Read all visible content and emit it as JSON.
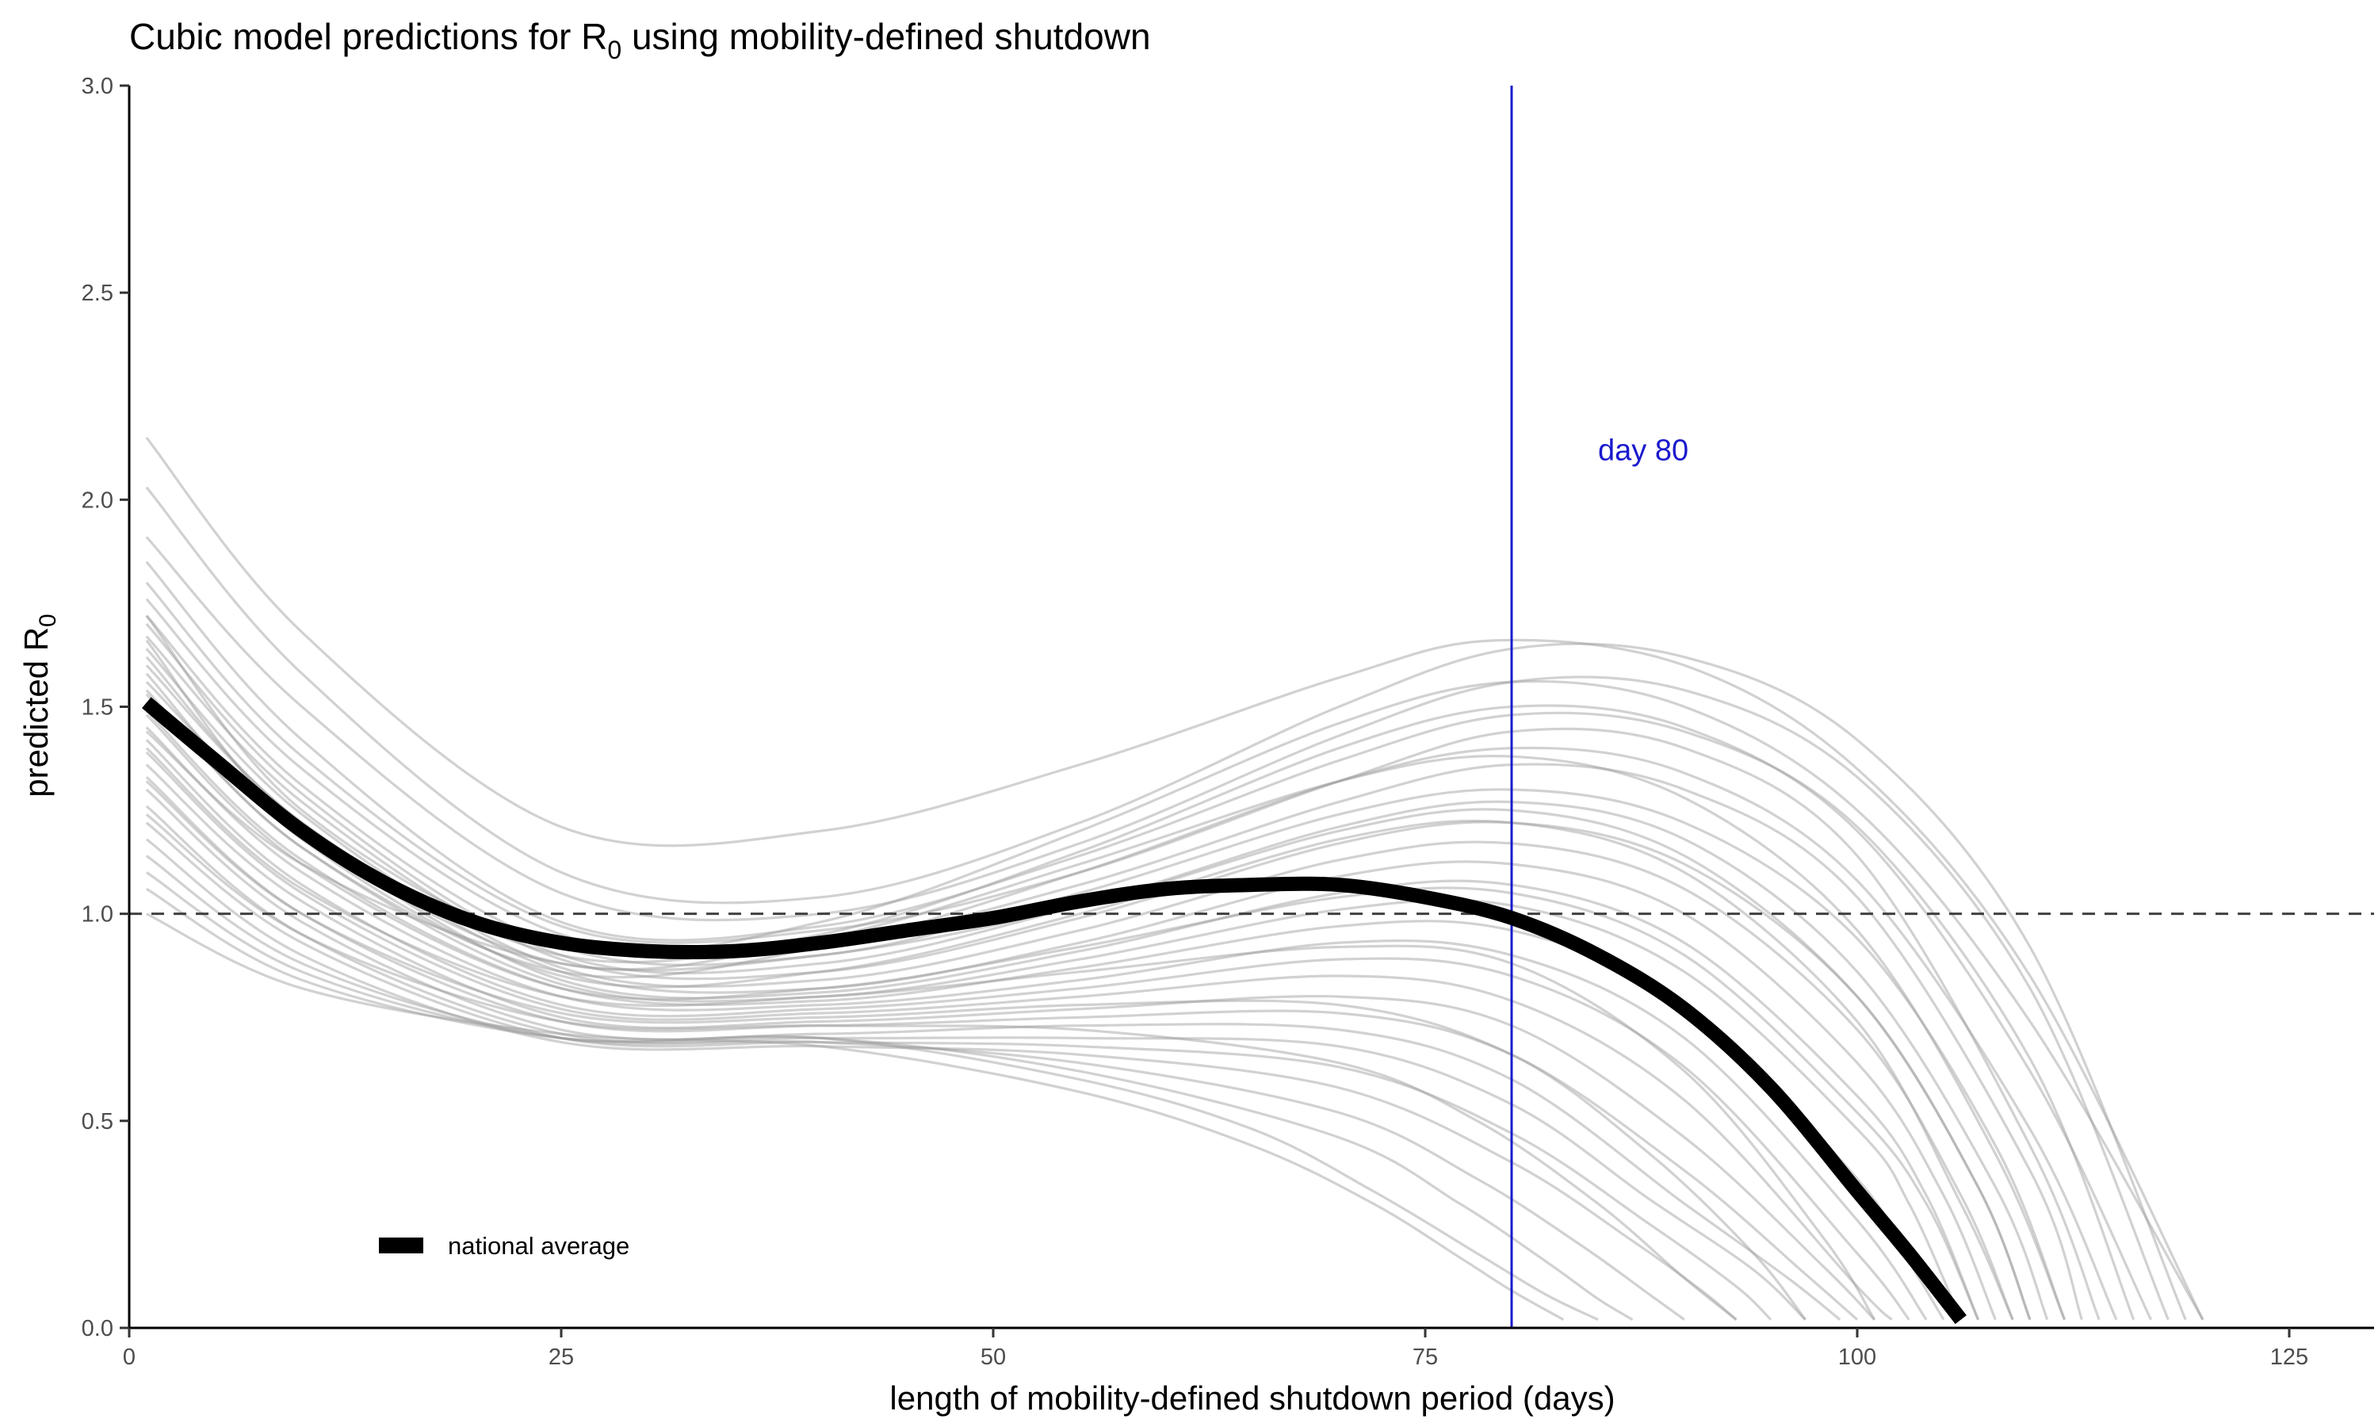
{
  "chart_data": {
    "type": "line",
    "title": "Cubic model predictions for R",
    "title_sub": "0",
    "title_rest": " using mobility-defined shutdown",
    "xlabel": "length of mobility-defined shutdown period (days)",
    "ylabel": "predicted R",
    "ylabel_sub": "0",
    "xlim": [
      0,
      130
    ],
    "ylim": [
      0,
      3.0
    ],
    "x_ticks": [
      0,
      25,
      50,
      75,
      100,
      125
    ],
    "x_tick_labels": [
      "0",
      "25",
      "50",
      "75",
      "100",
      "125"
    ],
    "y_ticks": [
      0,
      0.5,
      1.0,
      1.5,
      2.0,
      2.5,
      3.0
    ],
    "y_tick_labels": [
      "0.0",
      "0.5",
      "1.0",
      "1.5",
      "2.0",
      "2.5",
      "3.0"
    ],
    "grid": false,
    "reference_line": {
      "y": 1.0,
      "style": "dashed",
      "color": "#404040"
    },
    "vertical_line": {
      "x": 80,
      "color": "#1a1acd",
      "label": "day 80"
    },
    "legend": {
      "placement": "bottom-left",
      "label": "national average"
    },
    "colors": {
      "individual": "#9a9a9a",
      "national": "#000000",
      "vertical": "#1a1acd"
    },
    "series": [
      {
        "name": "national average",
        "highlight": true,
        "x": [
          1,
          5,
          10,
          15,
          20,
          25,
          30,
          35,
          40,
          45,
          50,
          55,
          60,
          65,
          70,
          75,
          80,
          85,
          90,
          95,
          100,
          103,
          106
        ],
        "values": [
          1.51,
          1.37,
          1.2,
          1.07,
          0.98,
          0.93,
          0.91,
          0.91,
          0.93,
          0.96,
          0.99,
          1.03,
          1.06,
          1.07,
          1.07,
          1.04,
          0.99,
          0.9,
          0.77,
          0.58,
          0.33,
          0.18,
          0.02
        ]
      },
      {
        "x": [
          1,
          10,
          25,
          40,
          55,
          70,
          79,
          90,
          100,
          110,
          120
        ],
        "values": [
          2.15,
          1.68,
          1.21,
          1.2,
          1.36,
          1.57,
          1.66,
          1.6,
          1.35,
          0.85,
          0.02
        ]
      },
      {
        "x": [
          1,
          10,
          25,
          40,
          55,
          70,
          80,
          90,
          100,
          110,
          119
        ],
        "values": [
          2.03,
          1.58,
          1.1,
          1.04,
          1.22,
          1.5,
          1.64,
          1.62,
          1.42,
          0.92,
          0.02
        ]
      },
      {
        "x": [
          1,
          10,
          25,
          40,
          55,
          70,
          80,
          90,
          100,
          110,
          118
        ],
        "values": [
          1.91,
          1.5,
          1.05,
          1.0,
          1.17,
          1.43,
          1.56,
          1.54,
          1.33,
          0.82,
          0.02
        ]
      },
      {
        "x": [
          1,
          10,
          25,
          40,
          55,
          70,
          80,
          90,
          100,
          110,
          116
        ],
        "values": [
          1.85,
          1.42,
          0.98,
          0.97,
          1.14,
          1.37,
          1.48,
          1.44,
          1.21,
          0.65,
          0.02
        ]
      },
      {
        "x": [
          1,
          10,
          25,
          40,
          55,
          70,
          80,
          90,
          100,
          110,
          114
        ],
        "values": [
          1.8,
          1.38,
          0.97,
          0.96,
          1.1,
          1.32,
          1.44,
          1.4,
          1.14,
          0.44,
          0.02
        ]
      },
      {
        "x": [
          1,
          10,
          25,
          40,
          55,
          70,
          80,
          90,
          100,
          110,
          113
        ],
        "values": [
          1.76,
          1.35,
          0.95,
          0.93,
          1.07,
          1.27,
          1.36,
          1.3,
          1.04,
          0.38,
          0.02
        ]
      },
      {
        "x": [
          1,
          10,
          25,
          40,
          55,
          70,
          80,
          90,
          100,
          108,
          112
        ],
        "values": [
          1.72,
          1.31,
          0.92,
          0.9,
          1.05,
          1.24,
          1.3,
          1.22,
          0.94,
          0.44,
          0.02
        ]
      },
      {
        "x": [
          1,
          10,
          25,
          40,
          55,
          70,
          80,
          90,
          100,
          108,
          111
        ],
        "values": [
          1.7,
          1.29,
          0.9,
          0.88,
          1.02,
          1.21,
          1.27,
          1.18,
          0.86,
          0.34,
          0.02
        ]
      },
      {
        "x": [
          1,
          10,
          25,
          40,
          55,
          70,
          80,
          90,
          100,
          107,
          110
        ],
        "values": [
          1.67,
          1.27,
          0.89,
          0.86,
          0.99,
          1.17,
          1.22,
          1.12,
          0.8,
          0.34,
          0.02
        ]
      },
      {
        "x": [
          1,
          10,
          25,
          40,
          55,
          70,
          80,
          90,
          100,
          106,
          109
        ],
        "values": [
          1.64,
          1.24,
          0.87,
          0.84,
          0.96,
          1.13,
          1.17,
          1.06,
          0.72,
          0.32,
          0.02
        ]
      },
      {
        "x": [
          1,
          10,
          25,
          40,
          55,
          70,
          80,
          90,
          100,
          105,
          108
        ],
        "values": [
          1.6,
          1.22,
          0.86,
          0.82,
          0.93,
          1.09,
          1.12,
          1.0,
          0.64,
          0.32,
          0.02
        ]
      },
      {
        "x": [
          1,
          10,
          25,
          40,
          55,
          70,
          80,
          90,
          100,
          104,
          107
        ],
        "values": [
          1.56,
          1.2,
          0.84,
          0.81,
          0.91,
          1.05,
          1.07,
          0.93,
          0.56,
          0.32,
          0.02
        ]
      },
      {
        "x": [
          1,
          10,
          25,
          40,
          55,
          70,
          80,
          90,
          100,
          103,
          106
        ],
        "values": [
          1.53,
          1.16,
          0.83,
          0.8,
          0.89,
          1.01,
          1.02,
          0.86,
          0.48,
          0.3,
          0.02
        ]
      },
      {
        "x": [
          1,
          10,
          25,
          40,
          55,
          70,
          80,
          90,
          100,
          103,
          105
        ],
        "values": [
          1.49,
          1.13,
          0.82,
          0.79,
          0.87,
          0.97,
          0.96,
          0.78,
          0.36,
          0.16,
          0.02
        ]
      },
      {
        "x": [
          1,
          10,
          25,
          40,
          55,
          70,
          80,
          90,
          100,
          104
        ],
        "values": [
          1.45,
          1.1,
          0.8,
          0.78,
          0.84,
          0.93,
          0.9,
          0.7,
          0.26,
          0.02
        ]
      },
      {
        "x": [
          1,
          10,
          25,
          40,
          55,
          70,
          80,
          90,
          100,
          103
        ],
        "values": [
          1.42,
          1.07,
          0.78,
          0.77,
          0.82,
          0.89,
          0.85,
          0.63,
          0.18,
          0.02
        ]
      },
      {
        "x": [
          1,
          10,
          25,
          40,
          55,
          70,
          80,
          90,
          100,
          102
        ],
        "values": [
          1.39,
          1.05,
          0.77,
          0.76,
          0.8,
          0.85,
          0.79,
          0.55,
          0.1,
          0.02
        ]
      },
      {
        "x": [
          1,
          10,
          25,
          40,
          55,
          70,
          80,
          90,
          98,
          101
        ],
        "values": [
          1.36,
          1.03,
          0.75,
          0.74,
          0.77,
          0.8,
          0.73,
          0.46,
          0.15,
          0.02
        ]
      },
      {
        "x": [
          1,
          10,
          25,
          40,
          55,
          70,
          80,
          90,
          97,
          100
        ],
        "values": [
          1.33,
          1.0,
          0.74,
          0.73,
          0.75,
          0.76,
          0.66,
          0.38,
          0.13,
          0.02
        ]
      },
      {
        "x": [
          1,
          10,
          25,
          40,
          55,
          70,
          80,
          90,
          96,
          99
        ],
        "values": [
          1.3,
          0.98,
          0.72,
          0.71,
          0.73,
          0.72,
          0.6,
          0.3,
          0.12,
          0.02
        ]
      },
      {
        "x": [
          1,
          10,
          25,
          40,
          55,
          70,
          80,
          88,
          94,
          97
        ],
        "values": [
          1.26,
          0.95,
          0.71,
          0.7,
          0.7,
          0.68,
          0.54,
          0.31,
          0.14,
          0.02
        ]
      },
      {
        "x": [
          1,
          10,
          25,
          40,
          55,
          70,
          80,
          88,
          93,
          95
        ],
        "values": [
          1.22,
          0.93,
          0.7,
          0.69,
          0.68,
          0.63,
          0.47,
          0.25,
          0.1,
          0.02
        ]
      },
      {
        "x": [
          1,
          10,
          25,
          40,
          55,
          70,
          80,
          87,
          91,
          93
        ],
        "values": [
          1.18,
          0.9,
          0.69,
          0.68,
          0.66,
          0.58,
          0.4,
          0.21,
          0.09,
          0.02
        ]
      },
      {
        "x": [
          1,
          10,
          25,
          40,
          55,
          70,
          78,
          84,
          88,
          90
        ],
        "values": [
          1.14,
          0.88,
          0.7,
          0.69,
          0.64,
          0.52,
          0.36,
          0.2,
          0.08,
          0.02
        ]
      },
      {
        "x": [
          1,
          10,
          25,
          40,
          55,
          70,
          77,
          82,
          85,
          87
        ],
        "values": [
          1.1,
          0.86,
          0.7,
          0.7,
          0.62,
          0.46,
          0.3,
          0.16,
          0.07,
          0.02
        ]
      },
      {
        "x": [
          1,
          10,
          25,
          40,
          55,
          65,
          72,
          78,
          82,
          85
        ],
        "values": [
          1.06,
          0.84,
          0.7,
          0.7,
          0.6,
          0.48,
          0.33,
          0.18,
          0.08,
          0.02
        ]
      },
      {
        "x": [
          1,
          10,
          25,
          40,
          55,
          65,
          72,
          77,
          80,
          83
        ],
        "values": [
          1.0,
          0.82,
          0.71,
          0.68,
          0.57,
          0.44,
          0.3,
          0.17,
          0.09,
          0.02
        ]
      },
      {
        "x": [
          1,
          10,
          25,
          40,
          55,
          70,
          80,
          90,
          100,
          110,
          120
        ],
        "values": [
          1.72,
          1.25,
          0.92,
          0.98,
          1.2,
          1.46,
          1.56,
          1.5,
          1.25,
          0.74,
          0.02
        ]
      },
      {
        "x": [
          1,
          10,
          25,
          40,
          55,
          70,
          80,
          90,
          100,
          108,
          112
        ],
        "values": [
          1.66,
          1.2,
          0.88,
          0.94,
          1.12,
          1.32,
          1.38,
          1.28,
          0.96,
          0.42,
          0.02
        ]
      },
      {
        "x": [
          1,
          10,
          25,
          40,
          55,
          70,
          80,
          90,
          100,
          106,
          109
        ],
        "values": [
          1.58,
          1.18,
          0.85,
          0.86,
          1.0,
          1.18,
          1.22,
          1.1,
          0.74,
          0.3,
          0.02
        ]
      },
      {
        "x": [
          1,
          10,
          25,
          40,
          55,
          70,
          80,
          90,
          100,
          104,
          107
        ],
        "values": [
          1.48,
          1.12,
          0.82,
          0.82,
          0.92,
          1.04,
          1.05,
          0.9,
          0.52,
          0.3,
          0.02
        ]
      },
      {
        "x": [
          1,
          10,
          25,
          40,
          55,
          70,
          80,
          90,
          98,
          101
        ],
        "values": [
          1.4,
          1.06,
          0.8,
          0.8,
          0.86,
          0.92,
          0.88,
          0.62,
          0.22,
          0.02
        ]
      },
      {
        "x": [
          1,
          10,
          25,
          40,
          55,
          70,
          80,
          88,
          94,
          97
        ],
        "values": [
          1.32,
          1.0,
          0.76,
          0.75,
          0.78,
          0.78,
          0.66,
          0.42,
          0.18,
          0.02
        ]
      },
      {
        "x": [
          1,
          10,
          25,
          40,
          55,
          70,
          78,
          85,
          90,
          93
        ],
        "values": [
          1.24,
          0.95,
          0.74,
          0.73,
          0.72,
          0.64,
          0.5,
          0.3,
          0.12,
          0.02
        ]
      },
      {
        "x": [
          1,
          10,
          25,
          40,
          55,
          70,
          80,
          90,
          100,
          110,
          117
        ],
        "values": [
          1.62,
          1.22,
          0.9,
          0.95,
          1.15,
          1.4,
          1.5,
          1.45,
          1.2,
          0.62,
          0.02
        ]
      },
      {
        "x": [
          1,
          10,
          25,
          40,
          55,
          70,
          80,
          90,
          100,
          110,
          115
        ],
        "values": [
          1.54,
          1.16,
          0.86,
          0.92,
          1.1,
          1.32,
          1.4,
          1.34,
          1.08,
          0.48,
          0.02
        ]
      },
      {
        "x": [
          1,
          10,
          25,
          40,
          55,
          70,
          80,
          90,
          100,
          107,
          110
        ],
        "values": [
          1.44,
          1.12,
          0.88,
          0.9,
          1.02,
          1.2,
          1.25,
          1.14,
          0.8,
          0.34,
          0.02
        ]
      }
    ]
  }
}
